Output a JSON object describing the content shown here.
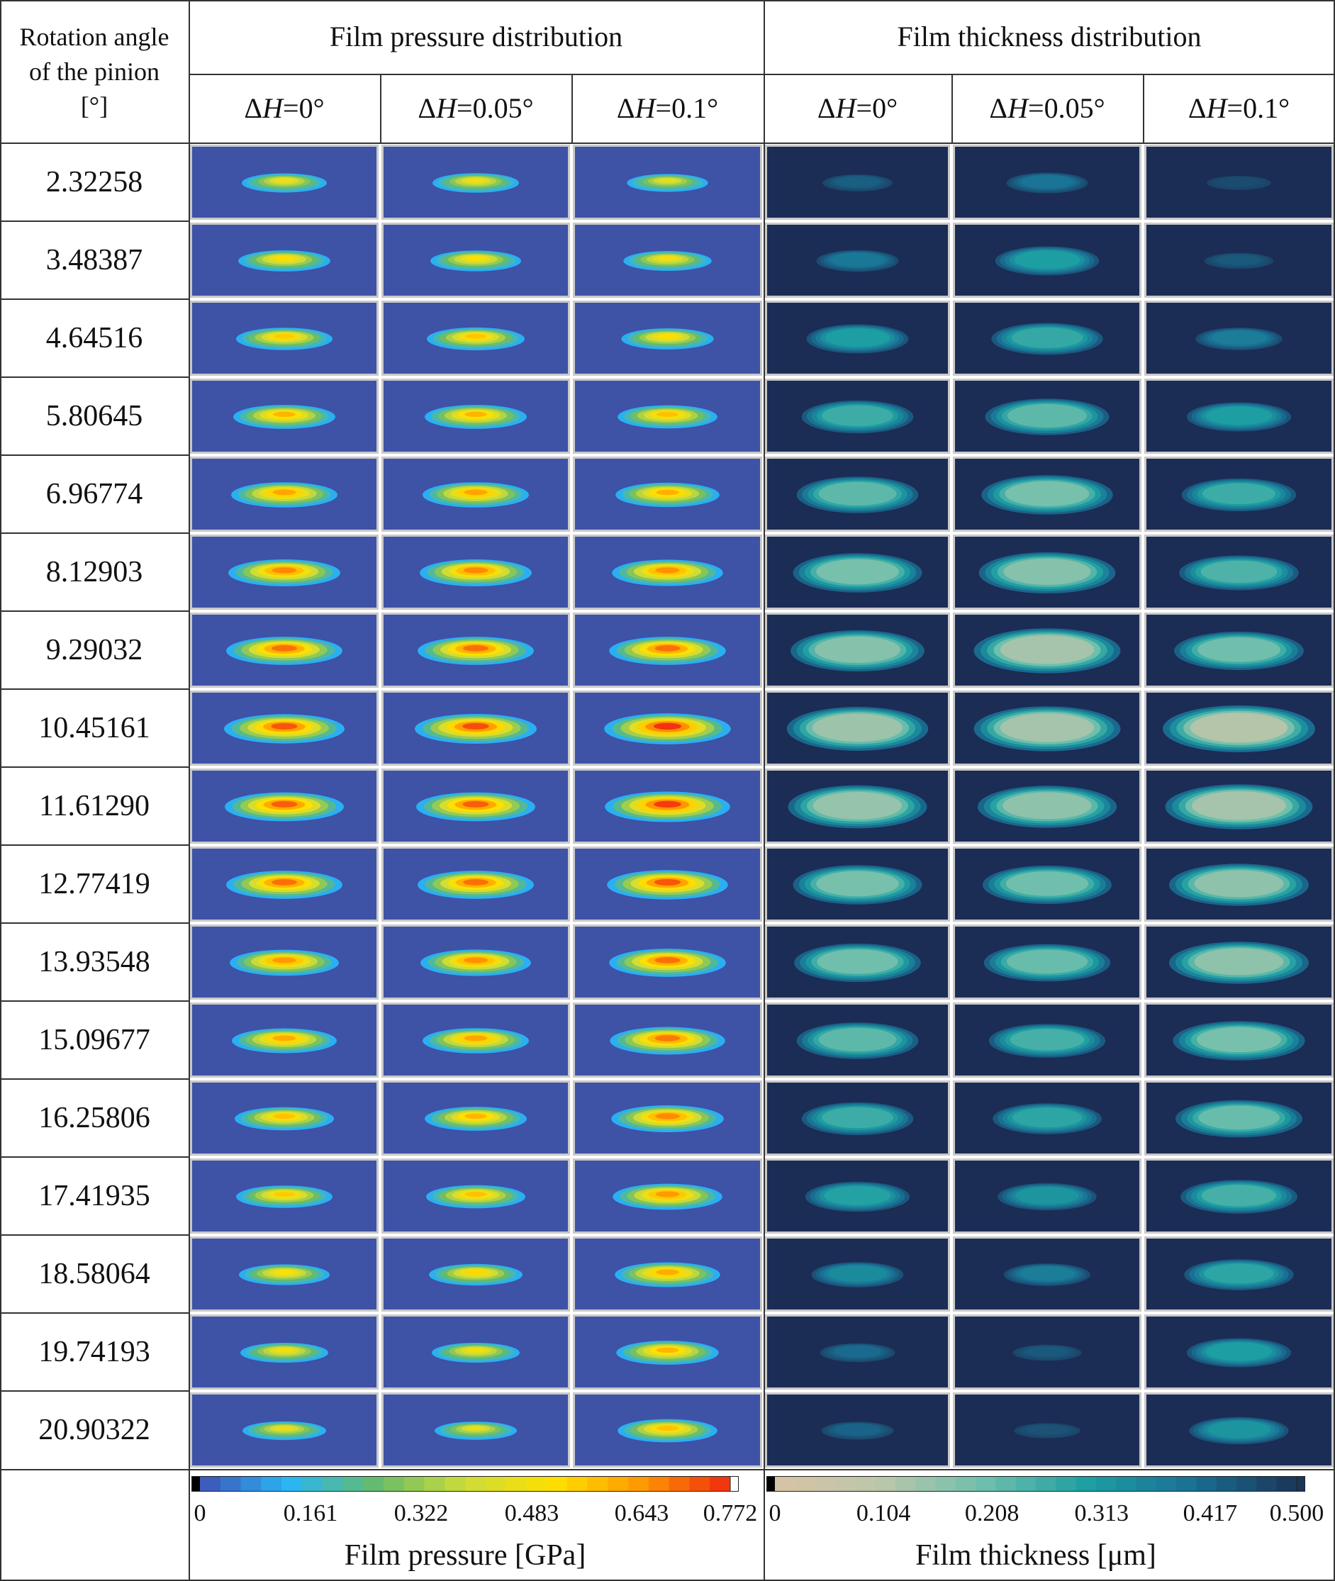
{
  "header": {
    "rotation_col": "Rotation angle of the pinion [°]",
    "rotation_lines": [
      "Rotation angle",
      "of the pinion",
      "[°]"
    ],
    "pressure_group": "Film pressure distribution",
    "thickness_group": "Film thickness distribution",
    "sub_columns": [
      {
        "prefix": "Δ",
        "var": "H",
        "suffix": "=0°"
      },
      {
        "prefix": "Δ",
        "var": "H",
        "suffix": "=0.05°"
      },
      {
        "prefix": "Δ",
        "var": "H",
        "suffix": "=0.1°"
      },
      {
        "prefix": "Δ",
        "var": "H",
        "suffix": "=0°"
      },
      {
        "prefix": "Δ",
        "var": "H",
        "suffix": "=0.05°"
      },
      {
        "prefix": "Δ",
        "var": "H",
        "suffix": "=0.1°"
      }
    ]
  },
  "rows": [
    {
      "angle": "2.32258",
      "pressure": [
        0.47,
        0.48,
        0.44
      ],
      "thickness": [
        0.43,
        0.39,
        0.46
      ]
    },
    {
      "angle": "3.48387",
      "pressure": [
        0.52,
        0.51,
        0.49
      ],
      "thickness": [
        0.38,
        0.3,
        0.44
      ]
    },
    {
      "angle": "4.64516",
      "pressure": [
        0.55,
        0.56,
        0.52
      ],
      "thickness": [
        0.3,
        0.27,
        0.37
      ]
    },
    {
      "angle": "5.80645",
      "pressure": [
        0.59,
        0.59,
        0.57
      ],
      "thickness": [
        0.26,
        0.22,
        0.3
      ]
    },
    {
      "angle": "6.96774",
      "pressure": [
        0.62,
        0.62,
        0.6
      ],
      "thickness": [
        0.22,
        0.19,
        0.26
      ]
    },
    {
      "angle": "8.12903",
      "pressure": [
        0.66,
        0.66,
        0.65
      ],
      "thickness": [
        0.19,
        0.17,
        0.24
      ]
    },
    {
      "angle": "9.29032",
      "pressure": [
        0.69,
        0.69,
        0.69
      ],
      "thickness": [
        0.17,
        0.13,
        0.2
      ]
    },
    {
      "angle": "10.45161",
      "pressure": [
        0.72,
        0.73,
        0.76
      ],
      "thickness": [
        0.14,
        0.13,
        0.11
      ]
    },
    {
      "angle": "11.61290",
      "pressure": [
        0.71,
        0.71,
        0.75
      ],
      "thickness": [
        0.15,
        0.16,
        0.13
      ]
    },
    {
      "angle": "12.77419",
      "pressure": [
        0.69,
        0.69,
        0.72
      ],
      "thickness": [
        0.19,
        0.2,
        0.16
      ]
    },
    {
      "angle": "13.93548",
      "pressure": [
        0.64,
        0.65,
        0.69
      ],
      "thickness": [
        0.2,
        0.21,
        0.16
      ]
    },
    {
      "angle": "15.09677",
      "pressure": [
        0.61,
        0.62,
        0.68
      ],
      "thickness": [
        0.22,
        0.25,
        0.19
      ]
    },
    {
      "angle": "16.25806",
      "pressure": [
        0.57,
        0.59,
        0.66
      ],
      "thickness": [
        0.26,
        0.28,
        0.21
      ]
    },
    {
      "angle": "17.41935",
      "pressure": [
        0.55,
        0.57,
        0.64
      ],
      "thickness": [
        0.29,
        0.32,
        0.25
      ]
    },
    {
      "angle": "18.58064",
      "pressure": [
        0.51,
        0.53,
        0.61
      ],
      "thickness": [
        0.34,
        0.37,
        0.28
      ]
    },
    {
      "angle": "19.74193",
      "pressure": [
        0.49,
        0.49,
        0.59
      ],
      "thickness": [
        0.41,
        0.44,
        0.3
      ]
    },
    {
      "angle": "20.90322",
      "pressure": [
        0.46,
        0.45,
        0.57
      ],
      "thickness": [
        0.42,
        0.45,
        0.32
      ]
    }
  ],
  "pressure_colorbar": {
    "title": "Film pressure [GPa]",
    "ticks": [
      "0",
      "0.161",
      "0.322",
      "0.483",
      "0.643",
      "0.772"
    ],
    "tick_values": [
      0,
      0.161,
      0.322,
      0.483,
      0.643,
      0.772
    ],
    "min": 0,
    "max": 0.772,
    "colors": [
      "#000000",
      "#3f51b5",
      "#29b6f6",
      "#66bb6a",
      "#cddc39",
      "#ffe000",
      "#ff9800",
      "#f02a10",
      "#ffffff"
    ]
  },
  "thickness_colorbar": {
    "title": "Film thickness [μm]",
    "ticks": [
      "0",
      "0.104",
      "0.208",
      "0.313",
      "0.417",
      "0.500"
    ],
    "tick_values": [
      0,
      0.104,
      0.208,
      0.313,
      0.417,
      0.5
    ],
    "min": 0,
    "max": 0.5,
    "colors": [
      "#000000",
      "#d8c3a6",
      "#bcc6aa",
      "#6fbfac",
      "#1c9ea2",
      "#1a6f94",
      "#1b3558"
    ]
  },
  "background_colors": {
    "pressure": "#3e52a6",
    "thickness": "#1b2c55"
  }
}
